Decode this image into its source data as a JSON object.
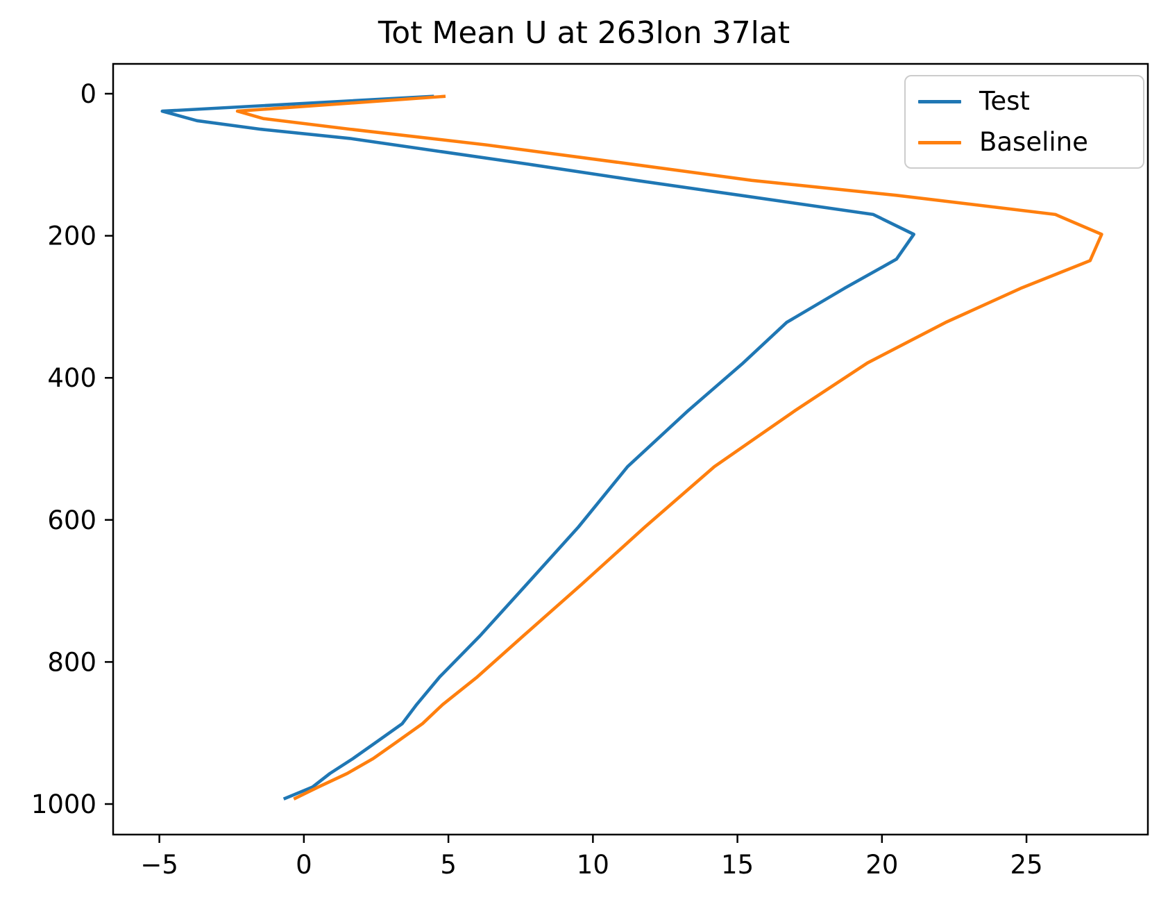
{
  "chart_data": {
    "type": "line",
    "title": "Tot Mean U at 263lon 37lat",
    "xlabel": "",
    "ylabel": "",
    "grid": false,
    "legend_position": "upper right",
    "x_ticks": [
      -5,
      0,
      5,
      10,
      15,
      20,
      25
    ],
    "y_ticks": [
      0,
      200,
      400,
      600,
      800,
      1000
    ],
    "xlim": [
      -6.6,
      29.2
    ],
    "ylim": [
      1043,
      -42
    ],
    "y_axis_inverted": true,
    "series": [
      {
        "name": "Test",
        "color": "#1f77b4",
        "points_x_y": [
          [
            4.5,
            3.6
          ],
          [
            -4.9,
            24.6
          ],
          [
            -3.7,
            38
          ],
          [
            -1.5,
            50
          ],
          [
            1.6,
            63
          ],
          [
            7.9,
            100
          ],
          [
            11.5,
            122
          ],
          [
            15.1,
            143
          ],
          [
            19.7,
            170
          ],
          [
            21.1,
            198
          ],
          [
            20.5,
            233
          ],
          [
            18.7,
            274
          ],
          [
            16.7,
            322
          ],
          [
            15.2,
            379
          ],
          [
            13.3,
            446
          ],
          [
            11.2,
            525
          ],
          [
            9.5,
            610
          ],
          [
            7.7,
            691
          ],
          [
            6.1,
            763
          ],
          [
            4.7,
            821
          ],
          [
            3.9,
            860
          ],
          [
            3.4,
            887
          ],
          [
            2.5,
            913
          ],
          [
            1.7,
            936
          ],
          [
            0.9,
            957
          ],
          [
            0.3,
            976
          ],
          [
            -0.7,
            993
          ]
        ]
      },
      {
        "name": "Baseline",
        "color": "#ff7f0e",
        "points_x_y": [
          [
            4.9,
            3.6
          ],
          [
            -2.3,
            24.6
          ],
          [
            -1.4,
            35
          ],
          [
            1.6,
            50
          ],
          [
            6.3,
            72
          ],
          [
            11.5,
            100
          ],
          [
            15.5,
            122
          ],
          [
            20.5,
            143
          ],
          [
            26.0,
            170
          ],
          [
            27.6,
            198
          ],
          [
            27.2,
            235
          ],
          [
            24.8,
            274
          ],
          [
            22.2,
            322
          ],
          [
            19.5,
            379
          ],
          [
            17.0,
            446
          ],
          [
            14.2,
            525
          ],
          [
            11.8,
            610
          ],
          [
            9.6,
            691
          ],
          [
            7.6,
            763
          ],
          [
            6.0,
            821
          ],
          [
            4.8,
            860
          ],
          [
            4.1,
            887
          ],
          [
            3.2,
            913
          ],
          [
            2.4,
            936
          ],
          [
            1.5,
            957
          ],
          [
            0.5,
            976
          ],
          [
            -0.35,
            993
          ]
        ]
      }
    ]
  },
  "legend": {
    "items": [
      {
        "label": "Test"
      },
      {
        "label": "Baseline"
      }
    ]
  },
  "style": {
    "spine_color": "#000000",
    "test_color": "#1f77b4",
    "baseline_color": "#ff7f0e"
  }
}
